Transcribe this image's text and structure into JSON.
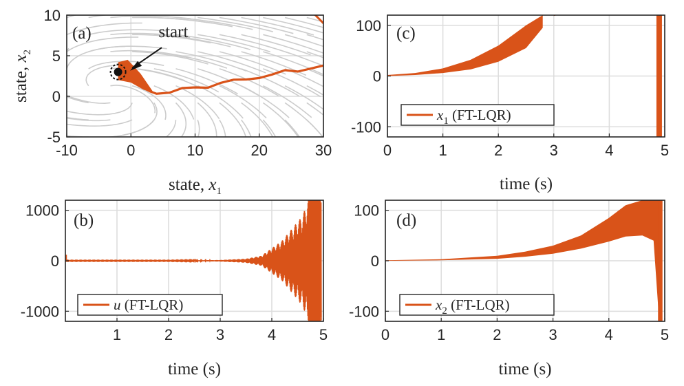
{
  "colors": {
    "series": "#d95319",
    "stream": "#cccccc",
    "grid": "#dcdcdc",
    "axis": "#262626"
  },
  "chart_data": [
    {
      "panel": "(a)",
      "type": "line",
      "subtype": "phase-portrait",
      "xlabel_prefix": "state, ",
      "xlabel_var": "x",
      "xlabel_sub": "1",
      "ylabel_prefix": "state, ",
      "ylabel_var": "x",
      "ylabel_sub": "2",
      "xlim": [
        -10,
        30
      ],
      "ylim": [
        -5,
        10
      ],
      "xticks": [
        "-10",
        "0",
        "10",
        "20",
        "30"
      ],
      "yticks": [
        "-5",
        "0",
        "5",
        "10"
      ],
      "grid": true,
      "background": "streamlines (vector field)",
      "annotation": "start",
      "start_point": [
        -2,
        3
      ],
      "series": [
        {
          "x": [
            -2,
            -1,
            0,
            1,
            2,
            3,
            4,
            6,
            8,
            10,
            12,
            14,
            16,
            18,
            20,
            22,
            24,
            26,
            28,
            30
          ],
          "y": [
            3,
            2.8,
            2.3,
            1.6,
            1.0,
            0.6,
            0.5,
            0.6,
            0.8,
            1.0,
            1.3,
            1.7,
            1.8,
            2.1,
            2.5,
            2.6,
            3.0,
            3.2,
            3.6,
            3.6
          ]
        }
      ]
    },
    {
      "panel": "(b)",
      "type": "line",
      "xlabel": "time (s)",
      "ylabel": "",
      "xlim": [
        0,
        5
      ],
      "ylim": [
        -1200,
        1200
      ],
      "xticks": [
        "1",
        "2",
        "3",
        "4",
        "5"
      ],
      "yticks": [
        "-1000",
        "0",
        "1000"
      ],
      "grid": true,
      "legend_position": "bottom-left",
      "series": [
        {
          "name_var": "u",
          "name_suffix": " (FT-LQR)",
          "t": [
            0,
            0.5,
            1,
            1.5,
            2,
            2.5,
            3,
            3.5,
            3.8,
            4.0,
            4.2,
            4.4,
            4.6,
            4.7,
            4.8,
            4.95
          ],
          "envelope": [
            5,
            5,
            5,
            5,
            5,
            8,
            15,
            40,
            100,
            250,
            400,
            650,
            900,
            1200,
            1200,
            1200
          ]
        }
      ]
    },
    {
      "panel": "(c)",
      "type": "line",
      "xlabel": "time (s)",
      "ylabel": "",
      "xlim": [
        0,
        5
      ],
      "ylim": [
        -120,
        120
      ],
      "xticks": [
        "0",
        "1",
        "2",
        "3",
        "4",
        "5"
      ],
      "yticks": [
        "-100",
        "0",
        "100"
      ],
      "grid": true,
      "legend_position": "bottom-left",
      "series": [
        {
          "name_var": "x",
          "name_sub": "1",
          "name_suffix": " (FT-LQR)",
          "t": [
            0,
            0.5,
            1,
            1.5,
            2,
            2.5,
            2.8
          ],
          "lower": [
            0,
            2,
            6,
            13,
            28,
            55,
            95
          ],
          "upper": [
            2,
            6,
            15,
            32,
            60,
            100,
            120
          ],
          "spike_t": 4.9,
          "spike_range": [
            -120,
            120
          ]
        }
      ]
    },
    {
      "panel": "(d)",
      "type": "line",
      "xlabel": "time (s)",
      "ylabel": "",
      "xlim": [
        0,
        5
      ],
      "ylim": [
        -120,
        120
      ],
      "xticks": [
        "0",
        "1",
        "2",
        "3",
        "4",
        "5"
      ],
      "yticks": [
        "-100",
        "0",
        "100"
      ],
      "grid": true,
      "legend_position": "bottom-left",
      "series": [
        {
          "name_var": "x",
          "name_sub": "2",
          "name_suffix": " (FT-LQR)",
          "t": [
            0,
            1,
            2,
            2.5,
            3,
            3.5,
            4,
            4.3,
            4.6,
            4.8,
            4.9
          ],
          "lower": [
            0,
            1,
            4,
            8,
            14,
            24,
            38,
            48,
            50,
            40,
            -120
          ],
          "upper": [
            1,
            3,
            10,
            18,
            30,
            50,
            85,
            110,
            120,
            120,
            120
          ]
        }
      ]
    }
  ]
}
